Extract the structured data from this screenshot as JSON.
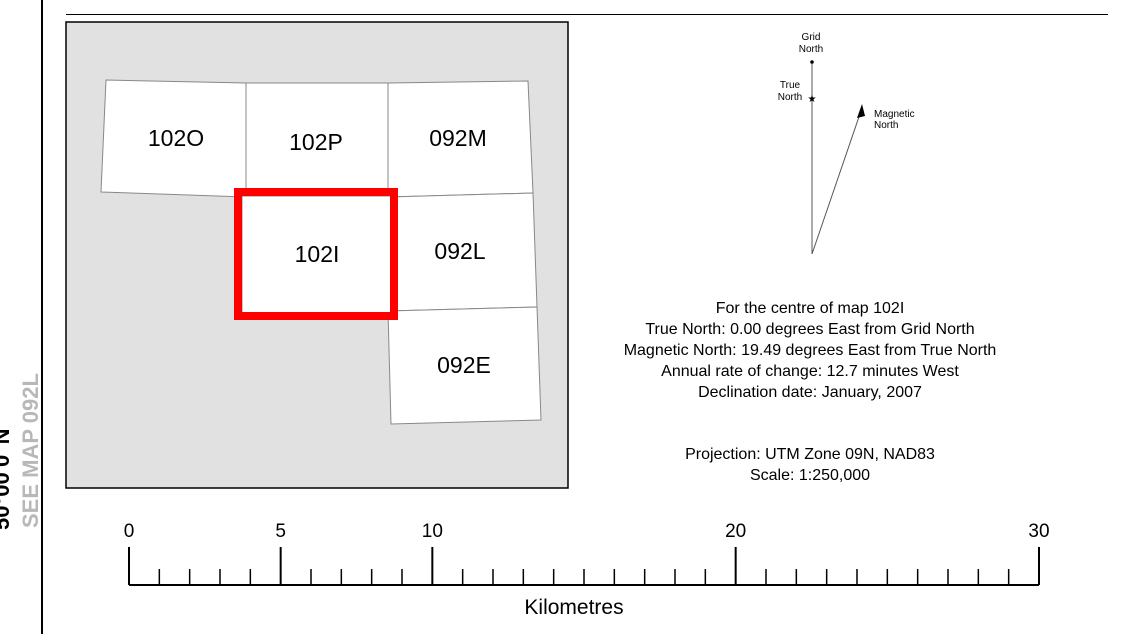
{
  "sidebar": {
    "see_map": "SEE MAP 092L",
    "coordinate": "50°00'0\"N"
  },
  "index_map": {
    "tiles": [
      {
        "id": "102O",
        "selected": false
      },
      {
        "id": "102P",
        "selected": false
      },
      {
        "id": "092M",
        "selected": false
      },
      {
        "id": "102I",
        "selected": true
      },
      {
        "id": "092L",
        "selected": false
      },
      {
        "id": "092E",
        "selected": false
      }
    ],
    "colors": {
      "background": "#e1e1e1",
      "tile": "#ffffff",
      "highlight": "#ff0000"
    }
  },
  "north_arrow": {
    "grid_north": [
      "Grid",
      "North"
    ],
    "true_north": [
      "True",
      "North"
    ],
    "magnetic_north": [
      "Magnetic",
      "North"
    ]
  },
  "declination": {
    "centre": "For the centre of map 102I",
    "true_north": "True North: 0.00 degrees East from Grid North",
    "magnetic_north": "Magnetic North: 19.49 degrees East from True North",
    "annual_change": "Annual rate of change: 12.7 minutes West",
    "date": "Declination date: January, 2007"
  },
  "projection": {
    "projection": "Projection: UTM Zone 09N, NAD83",
    "scale": "Scale: 1:250,000"
  },
  "scale_bar": {
    "labels": [
      "0",
      "5",
      "10",
      "20",
      "30"
    ],
    "label_values": [
      0,
      5,
      10,
      20,
      30
    ],
    "max_km": 30,
    "minor_tick_km": 1,
    "unit": "Kilometres"
  }
}
